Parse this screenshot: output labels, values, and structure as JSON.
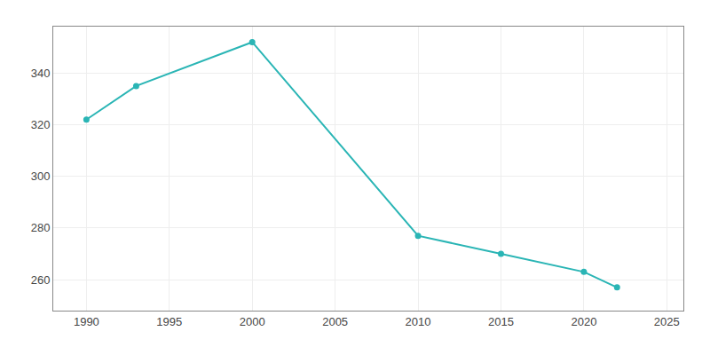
{
  "chart_data": {
    "type": "line",
    "x": [
      1990,
      1993,
      2000,
      2010,
      2015,
      2020,
      2022
    ],
    "values": [
      322,
      335,
      352,
      277,
      270,
      263,
      257
    ],
    "color": "#2ab5b5",
    "marker": "circle",
    "xlim": [
      1988,
      2026
    ],
    "ylim": [
      248,
      358
    ],
    "xticks": [
      1990,
      1995,
      2000,
      2005,
      2010,
      2015,
      2020,
      2025
    ],
    "yticks": [
      260,
      280,
      300,
      320,
      340
    ],
    "grid": true
  }
}
